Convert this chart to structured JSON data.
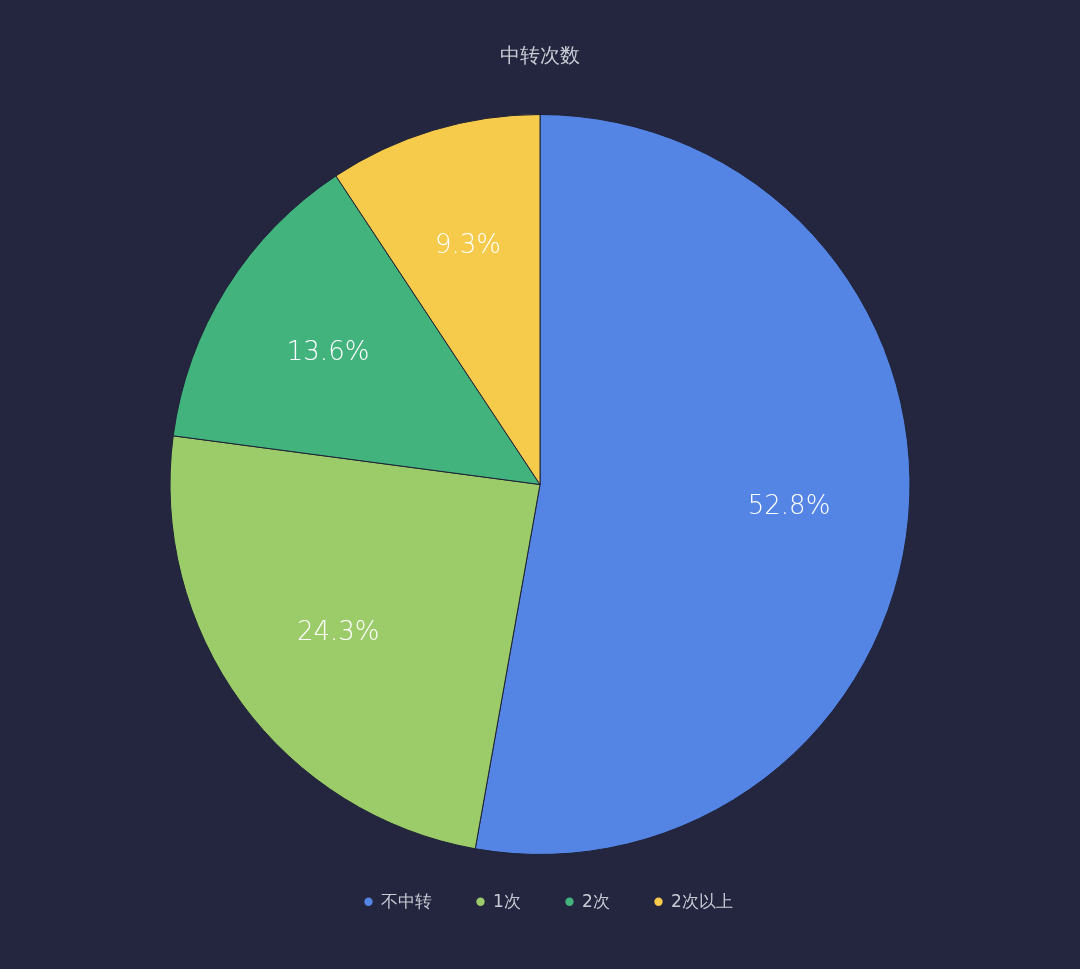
{
  "chart_data": {
    "type": "pie",
    "title": "中转次数",
    "categories": [
      "不中转",
      "1次",
      "2次",
      "2次以上"
    ],
    "values": [
      52.8,
      24.3,
      13.6,
      9.3
    ],
    "colors": [
      "#5585e4",
      "#9ccc69",
      "#43b37e",
      "#f6cb4c"
    ],
    "value_labels": [
      "52.8%",
      "24.3%",
      "13.6%",
      "9.3%"
    ],
    "legend": "bottom"
  }
}
